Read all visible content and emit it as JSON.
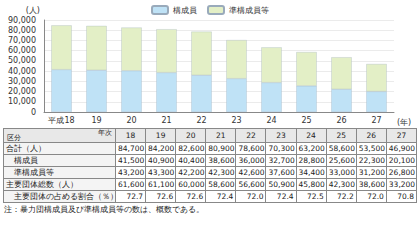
{
  "chart_data": {
    "type": "bar",
    "stacked": true,
    "grid": true,
    "legend": "top",
    "x_label": "(年)",
    "y_label": "(人)",
    "categories": [
      "平成18",
      "19",
      "20",
      "21",
      "22",
      "23",
      "24",
      "25",
      "26",
      "27"
    ],
    "series": [
      {
        "name": "構成員",
        "color": "#bfe2f6",
        "values": [
          41500,
          40900,
          40400,
          38600,
          36000,
          32700,
          28800,
          25600,
          22300,
          20100
        ]
      },
      {
        "name": "準構成員等",
        "color": "#e3efc6",
        "values": [
          43200,
          43300,
          42200,
          42300,
          42600,
          37600,
          34400,
          33000,
          31200,
          26800
        ]
      }
    ],
    "ylim": [
      0,
      90000
    ],
    "yticks": [
      0,
      {
        "value": 10000,
        "label": "10,000"
      },
      {
        "value": 20000,
        "label": "20,000"
      },
      {
        "value": 30000,
        "label": "30,000"
      },
      {
        "value": 40000,
        "label": "40,000"
      },
      {
        "value": 50000,
        "label": "50,000"
      },
      {
        "value": 60000,
        "label": "60,000"
      },
      {
        "value": 70000,
        "label": "70,000"
      },
      {
        "value": 80000,
        "label": "80,000"
      },
      {
        "value": 90000,
        "label": "90,000"
      }
    ]
  },
  "table": {
    "header": {
      "row_label": "区分",
      "column_label": "年次",
      "columns": [
        "18",
        "19",
        "20",
        "21",
        "22",
        "23",
        "24",
        "25",
        "26",
        "27"
      ]
    },
    "rows": [
      {
        "label": "合計（人）",
        "cells": [
          "84,700",
          "84,200",
          "82,600",
          "80,900",
          "78,600",
          "70,300",
          "63,200",
          "58,600",
          "53,500",
          "46,900"
        ]
      },
      {
        "label": "構成員",
        "cells": [
          "41,500",
          "40,900",
          "40,400",
          "38,600",
          "36,000",
          "32,700",
          "28,800",
          "25,600",
          "22,300",
          "20,100"
        ]
      },
      {
        "label": "準構成員等",
        "cells": [
          "43,200",
          "43,300",
          "42,200",
          "42,300",
          "42,600",
          "37,600",
          "34,400",
          "33,000",
          "31,200",
          "26,800"
        ]
      },
      {
        "label": "主要団体総数（人）",
        "cells": [
          "61,600",
          "61,100",
          "60,000",
          "58,600",
          "56,600",
          "50,900",
          "45,800",
          "42,300",
          "38,600",
          "33,200"
        ]
      },
      {
        "label": "主要団体の占める割合（％）",
        "cells": [
          "72.7",
          "72.6",
          "72.6",
          "72.4",
          "72.0",
          "72.4",
          "72.5",
          "72.2",
          "72.0",
          "70.8"
        ]
      }
    ]
  },
  "note": "注：暴力団構成員及び準構成員等の数は、概数である。"
}
